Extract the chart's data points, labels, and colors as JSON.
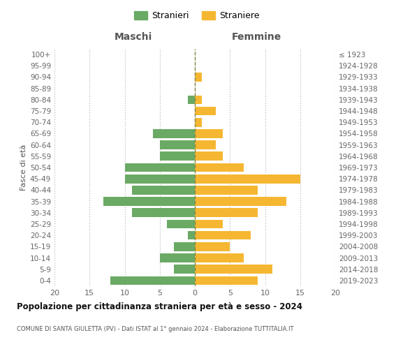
{
  "age_groups": [
    "0-4",
    "5-9",
    "10-14",
    "15-19",
    "20-24",
    "25-29",
    "30-34",
    "35-39",
    "40-44",
    "45-49",
    "50-54",
    "55-59",
    "60-64",
    "65-69",
    "70-74",
    "75-79",
    "80-84",
    "85-89",
    "90-94",
    "95-99",
    "100+"
  ],
  "birth_years": [
    "2019-2023",
    "2014-2018",
    "2009-2013",
    "2004-2008",
    "1999-2003",
    "1994-1998",
    "1989-1993",
    "1984-1988",
    "1979-1983",
    "1974-1978",
    "1969-1973",
    "1964-1968",
    "1959-1963",
    "1954-1958",
    "1949-1953",
    "1944-1948",
    "1939-1943",
    "1934-1938",
    "1929-1933",
    "1924-1928",
    "≤ 1923"
  ],
  "maschi": [
    12,
    3,
    5,
    3,
    1,
    4,
    9,
    13,
    9,
    10,
    10,
    5,
    5,
    6,
    0,
    0,
    1,
    0,
    0,
    0,
    0
  ],
  "femmine": [
    9,
    11,
    7,
    5,
    8,
    4,
    9,
    13,
    9,
    15,
    7,
    4,
    3,
    4,
    1,
    3,
    1,
    0,
    1,
    0,
    0
  ],
  "color_maschi": "#6aaa64",
  "color_femmine": "#f5b731",
  "title": "Popolazione per cittadinanza straniera per età e sesso - 2024",
  "subtitle": "COMUNE DI SANTA GIULETTA (PV) - Dati ISTAT al 1° gennaio 2024 - Elaborazione TUTTITALIA.IT",
  "ylabel_left": "Fasce di età",
  "xlabel_left": "Maschi",
  "xlabel_right": "Femmine",
  "legend_maschi": "Stranieri",
  "legend_femmine": "Straniere",
  "xlim": 20,
  "background_color": "#ffffff",
  "grid_color": "#bbbbbb"
}
